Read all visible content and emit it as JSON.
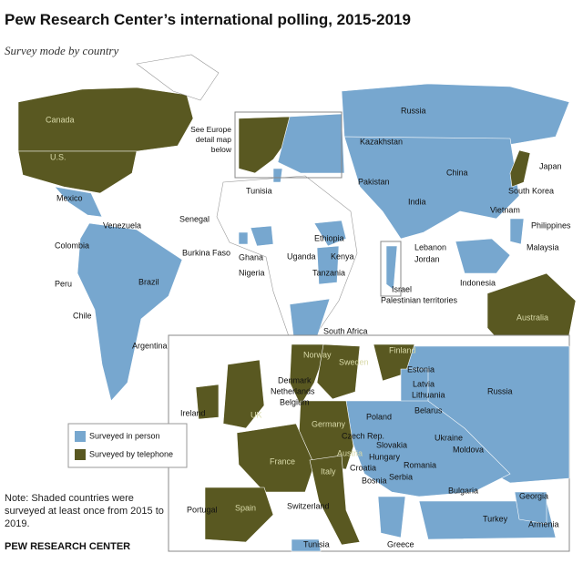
{
  "header": {
    "title": "Pew Research Center’s international polling, 2015-2019",
    "subtitle": "Survey mode by country"
  },
  "europe_pointer": "See Europe detail map below",
  "world_labels": [
    "Canada",
    "U.S.",
    "Mexico",
    "Venezuela",
    "Colombia",
    "Peru",
    "Chile",
    "Brazil",
    "Argentina",
    "Russia",
    "Kazakhstan",
    "China",
    "Japan",
    "South Korea",
    "Pakistan",
    "India",
    "Vietnam",
    "Philippines",
    "Malaysia",
    "Indonesia",
    "Australia",
    "Tunisia",
    "Senegal",
    "Burkina Faso",
    "Ghana",
    "Nigeria",
    "Ethiopia",
    "Kenya",
    "Uganda",
    "Tanzania",
    "South Africa",
    "Lebanon",
    "Jordan",
    "Israel",
    "Palestinian territories"
  ],
  "europe_labels": [
    "Norway",
    "Finland",
    "Sweden",
    "Estonia",
    "Latvia",
    "Lithuania",
    "Russia",
    "Denmark",
    "Netherlands",
    "Belgium",
    "Ireland",
    "UK",
    "Belarus",
    "Poland",
    "Germany",
    "Czech Rep.",
    "Ukraine",
    "Slovakia",
    "Austria",
    "Hungary",
    "Moldova",
    "France",
    "Romania",
    "Croatia",
    "Italy",
    "Bosnia",
    "Serbia",
    "Bulgaria",
    "Georgia",
    "Spain",
    "Portugal",
    "Switzerland",
    "Turkey",
    "Armenia",
    "Tunisia",
    "Greece"
  ],
  "legend": [
    {
      "label": "Surveyed in person",
      "color": "#77a7cf"
    },
    {
      "label": "Surveyed by telephone",
      "color": "#595821"
    }
  ],
  "note": "Note: Shaded countries were surveyed at least once from 2015 to 2019.",
  "source": "PEW RESEARCH CENTER"
}
